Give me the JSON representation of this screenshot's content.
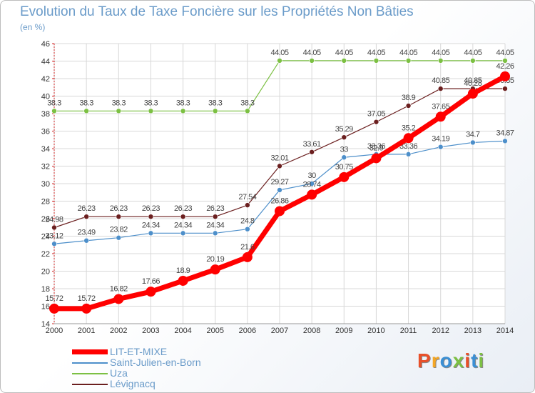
{
  "header": {
    "title": "Evolution du Taux de Taxe Foncière sur les Propriétés Non Bâties",
    "subtitle": "(en %)"
  },
  "logo": {
    "text": "Proxiti",
    "colors": [
      "#e8502a",
      "#f5a623",
      "#3b8fd4",
      "#7cc043",
      "#e8502a",
      "#3b8fd4",
      "#7cc043"
    ]
  },
  "chart_data": {
    "type": "line",
    "title": "Evolution du Taux de Taxe Foncière sur les Propriétés Non Bâties",
    "ylabel": "(en %)",
    "ylim": [
      14,
      46
    ],
    "yticks": [
      14,
      16,
      18,
      20,
      22,
      24,
      26,
      28,
      30,
      32,
      34,
      36,
      38,
      40,
      42,
      44,
      46
    ],
    "x": [
      2000,
      2001,
      2002,
      2003,
      2004,
      2005,
      2006,
      2007,
      2008,
      2009,
      2010,
      2011,
      2012,
      2013,
      2014
    ],
    "grid": true,
    "legend": "bottom-left",
    "series": [
      {
        "name": "Uza",
        "color": "#7cc043",
        "values": [
          38.3,
          38.3,
          38.3,
          38.3,
          38.3,
          38.3,
          38.3,
          44.05,
          44.05,
          44.05,
          44.05,
          44.05,
          44.05,
          44.05,
          44.05
        ]
      },
      {
        "name": "Lévignacq",
        "color": "#6b1f1f",
        "values": [
          24.98,
          26.23,
          26.23,
          26.23,
          26.23,
          26.23,
          27.54,
          32.01,
          33.61,
          35.29,
          37.05,
          38.9,
          40.85,
          40.85,
          40.85
        ]
      },
      {
        "name": "Saint-Julien-en-Born",
        "color": "#4d8fca",
        "values": [
          23.12,
          23.49,
          23.82,
          24.34,
          24.34,
          24.34,
          24.8,
          29.27,
          30,
          33,
          33.36,
          33.36,
          34.19,
          34.7,
          34.87
        ]
      },
      {
        "name": "LIT-ET-MIXE",
        "color": "#ff0000",
        "values": [
          15.72,
          15.72,
          16.82,
          17.66,
          18.9,
          20.19,
          21.6,
          26.86,
          28.74,
          30.75,
          32.9,
          35.2,
          37.65,
          40.28,
          42.26
        ]
      }
    ],
    "legend_order": [
      "LIT-ET-MIXE",
      "Saint-Julien-en-Born",
      "Uza",
      "Lévignacq"
    ]
  }
}
